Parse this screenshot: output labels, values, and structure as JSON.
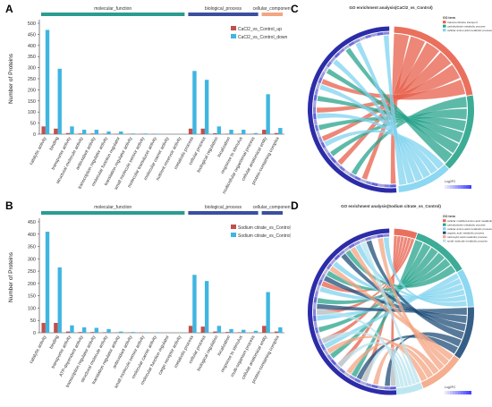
{
  "panels": {
    "A": {
      "letter": "A"
    },
    "B": {
      "letter": "B"
    },
    "C": {
      "letter": "C"
    },
    "D": {
      "letter": "D"
    }
  },
  "chart_data": [
    {
      "id": "A",
      "type": "bar",
      "ylabel": "Number of Proteins",
      "ylim": [
        0,
        500
      ],
      "yticks": [
        0,
        50,
        100,
        150,
        200,
        250,
        300,
        350,
        400,
        450,
        500
      ],
      "group_labels": [
        "molecular_function",
        "biological_process",
        "cellular_component"
      ],
      "group_colors": [
        "#2a9d8f",
        "#3b4fa0",
        "#f4a582"
      ],
      "group_ranges": [
        [
          0,
          12
        ],
        [
          12,
          18
        ],
        [
          18,
          20
        ]
      ],
      "categories": [
        "catalytic activity",
        "binding",
        "transporter activity",
        "structural molecule activity",
        "antioxidant activity",
        "transcription regulator activity",
        "molecular function regulator",
        "translation regulator activity",
        "small molecule sensor activity",
        "molecular transducer activity",
        "molecular carrier activity",
        "nutrient reservoir activity",
        "metabolic process",
        "cellular process",
        "biological regulation",
        "localization",
        "response to stimulus",
        "multicellular organismal process",
        "cellular anatomical entity",
        "protein-containing complex"
      ],
      "series": [
        {
          "name": "CaCl2_vs_Control_up",
          "color": "#c0504d",
          "values": [
            35,
            25,
            5,
            3,
            3,
            2,
            2,
            1,
            1,
            1,
            0,
            0,
            25,
            25,
            4,
            2,
            2,
            1,
            20,
            5
          ]
        },
        {
          "name": "CaCl2_vs_Control_down",
          "color": "#3fb6e0",
          "values": [
            470,
            295,
            35,
            20,
            20,
            12,
            12,
            3,
            3,
            2,
            1,
            1,
            285,
            245,
            35,
            20,
            20,
            5,
            180,
            28
          ]
        }
      ],
      "legend_position": "top-right"
    },
    {
      "id": "B",
      "type": "bar",
      "ylabel": "Number of Proteins",
      "ylim": [
        0,
        450
      ],
      "yticks": [
        0,
        50,
        100,
        150,
        200,
        250,
        300,
        350,
        400,
        450
      ],
      "group_labels": [
        "molecular_function",
        "biological_process",
        "cellular_component"
      ],
      "group_colors": [
        "#2a9d8f",
        "#3b4fa0",
        "#3b4fa0"
      ],
      "group_ranges": [
        [
          0,
          12
        ],
        [
          12,
          18
        ],
        [
          18,
          20
        ]
      ],
      "categories": [
        "catalytic activity",
        "binding",
        "transporter activity",
        "ATP-dependent activity",
        "transcription regulator activity",
        "structural molecule activity",
        "translation regulator activity",
        "antioxidant activity",
        "small molecule sensor activity",
        "molecular carrier activity",
        "molecular function regulator",
        "cargo receptor activity",
        "metabolic process",
        "cellular process",
        "biological regulation",
        "localization",
        "response to stimulus",
        "multi-organism process",
        "cellular anatomical entity",
        "protein-containing complex"
      ],
      "series": [
        {
          "name": "Sodium citrate_vs_Control_up",
          "color": "#c0504d",
          "values": [
            40,
            40,
            5,
            3,
            3,
            2,
            1,
            1,
            1,
            0,
            0,
            0,
            28,
            25,
            5,
            3,
            2,
            1,
            28,
            5
          ]
        },
        {
          "name": "Sodium citrate_vs_Control_down",
          "color": "#3fb6e0",
          "values": [
            410,
            265,
            30,
            22,
            20,
            15,
            5,
            3,
            2,
            2,
            1,
            1,
            235,
            210,
            28,
            15,
            12,
            8,
            165,
            22
          ]
        }
      ],
      "legend_position": "top-right"
    },
    {
      "id": "C",
      "type": "chord",
      "title": "GO enrichment analysis(CaCl2_vs_Control)",
      "legend_title": "GO term",
      "terms": [
        "transmembrane transport",
        "carbohydrate metabolic process",
        "cellular amino acid metabolic process"
      ],
      "term_colors": [
        "#e8604c",
        "#27a38b",
        "#7fd3f0"
      ],
      "term_shares": [
        0.28,
        0.2,
        0.14
      ],
      "scale_label": "Log2FC"
    },
    {
      "id": "D",
      "type": "chord",
      "title": "GO enrichment analysis(Sodium citrate_vs_Control)",
      "legend_title": "GO term",
      "terms": [
        "cellular modified amino acid metabolic process",
        "carbohydrate metabolic process",
        "cellular amino acid metabolic process",
        "organic acid metabolic process",
        "carboxylic acid metabolic process",
        "small molecule metabolic process"
      ],
      "term_colors": [
        "#e8604c",
        "#27a38b",
        "#7fd3f0",
        "#1f4e79",
        "#f4a582",
        "#b7e3ee"
      ],
      "term_shares": [
        0.06,
        0.15,
        0.1,
        0.14,
        0.12,
        0.07
      ],
      "scale_label": "Log2FC"
    }
  ]
}
